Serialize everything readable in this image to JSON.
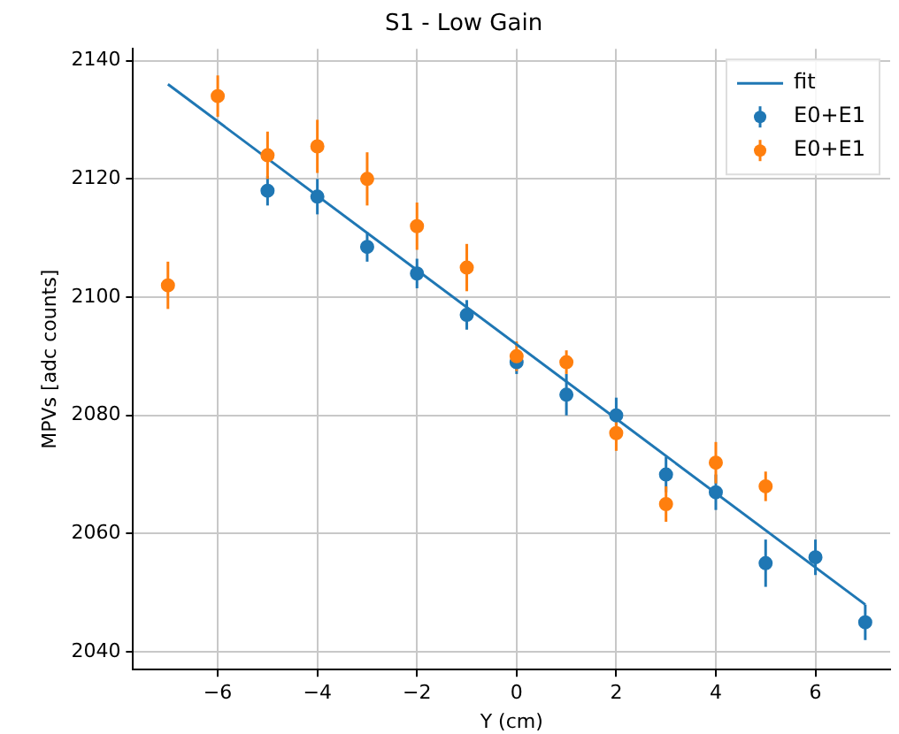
{
  "chart_data": {
    "type": "scatter",
    "title": "S1 - Low Gain",
    "xlabel": "Y (cm)",
    "ylabel": "MPVs [adc counts]",
    "xlim": [
      -7.7,
      7.5
    ],
    "xticks": [
      -6,
      -4,
      -2,
      0,
      2,
      4,
      6
    ],
    "ylim": [
      2037,
      2142
    ],
    "yticks": [
      2040,
      2060,
      2080,
      2100,
      2120,
      2140
    ],
    "grid": true,
    "legend": "top right",
    "marker": "circle",
    "series": [
      {
        "name": "fit",
        "type": "line",
        "marker": "none",
        "color": "#1f77b4",
        "x": [
          -7,
          7
        ],
        "values": [
          2136,
          2048
        ]
      },
      {
        "name": "E0+E1",
        "color": "#1f77b4",
        "x": [
          -5,
          -4,
          -3,
          -2,
          -1,
          0,
          1,
          2,
          3,
          4,
          5,
          6,
          7
        ],
        "values": [
          2118,
          2117,
          2108.5,
          2104,
          2097,
          2089,
          2083.5,
          2080,
          2070,
          2067,
          2055,
          2056,
          2045
        ],
        "errors": [
          2.5,
          3,
          2.5,
          2.5,
          2.5,
          2,
          3.5,
          3,
          3,
          3,
          4,
          3,
          3
        ]
      },
      {
        "name": "E0+E1",
        "color": "#ff7f0e",
        "x": [
          -7,
          -6,
          -5,
          -4,
          -3,
          -2,
          -1,
          0,
          1,
          2,
          3,
          4,
          5
        ],
        "values": [
          2102,
          2134,
          2124,
          2125.5,
          2120,
          2112,
          2105,
          2090,
          2089,
          2077,
          2065,
          2072,
          2068
        ],
        "errors": [
          4,
          3.5,
          4,
          4.5,
          4.5,
          4,
          4,
          2.5,
          2,
          3,
          3,
          3.5,
          2.5
        ]
      }
    ]
  }
}
